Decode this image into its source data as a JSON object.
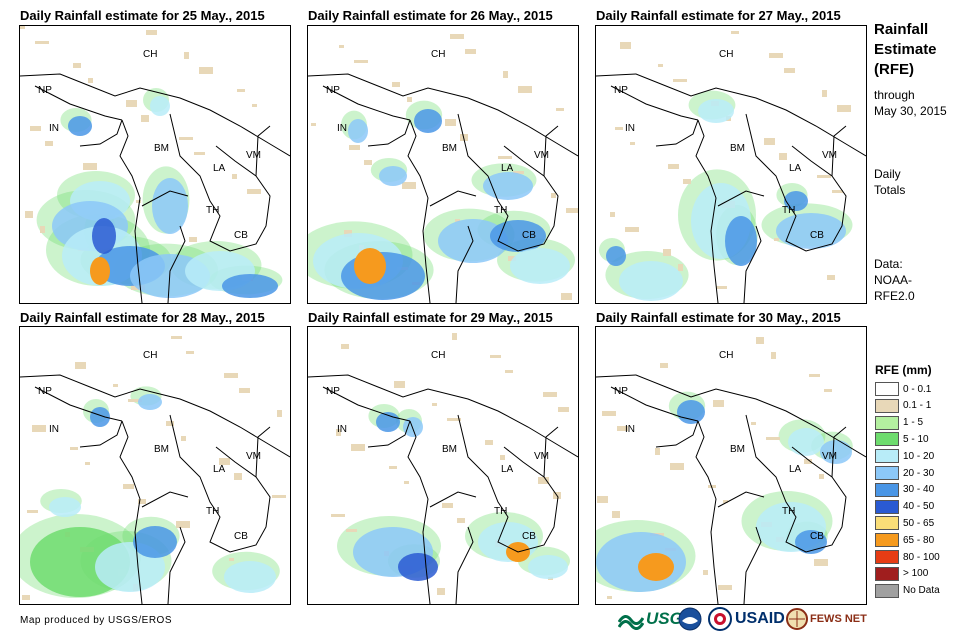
{
  "panels": [
    {
      "title": "Daily Rainfall estimate for 25 May., 2015"
    },
    {
      "title": "Daily Rainfall estimate for 26 May., 2015"
    },
    {
      "title": "Daily Rainfall estimate for 27 May., 2015"
    },
    {
      "title": "Daily Rainfall estimate for 28 May., 2015"
    },
    {
      "title": "Daily Rainfall estimate for 29 May., 2015"
    },
    {
      "title": "Daily Rainfall estimate for 30 May., 2015"
    }
  ],
  "country_labels": [
    "CH",
    "NP",
    "IN",
    "BM",
    "LA",
    "VM",
    "TH",
    "CB"
  ],
  "sidebar": {
    "title_lines": [
      "Rainfall",
      "Estimate",
      "(RFE)"
    ],
    "through_lines": [
      "through",
      "May 30, 2015"
    ],
    "totals_lines": [
      "Daily",
      "Totals"
    ],
    "data_lines": [
      "Data:",
      "NOAA-",
      "RFE2.0"
    ]
  },
  "legend": {
    "title": "RFE (mm)",
    "items": [
      {
        "label": "0 - 0.1",
        "color": "#ffffff"
      },
      {
        "label": "0.1 - 1",
        "color": "#e8d8b8"
      },
      {
        "label": "1 - 5",
        "color": "#b4f0a0"
      },
      {
        "label": "5 - 10",
        "color": "#6edc6e"
      },
      {
        "label": "10 - 20",
        "color": "#b8ecf8"
      },
      {
        "label": "20 - 30",
        "color": "#8cc8f8"
      },
      {
        "label": "30 - 40",
        "color": "#4a96e6"
      },
      {
        "label": "40 - 50",
        "color": "#2a5ad2"
      },
      {
        "label": "50 - 65",
        "color": "#fade78"
      },
      {
        "label": "65 - 80",
        "color": "#f69a1e"
      },
      {
        "label": "80 - 100",
        "color": "#e63c14"
      },
      {
        "label": "> 100",
        "color": "#a01e1e"
      },
      {
        "label": "No Data",
        "color": "#a0a0a0"
      }
    ]
  },
  "footer": {
    "credit": "Map produced by USGS/EROS",
    "logos": [
      {
        "text": "USGS",
        "color": "#00704a"
      },
      {
        "text": "USAID",
        "color": "#002f6c"
      },
      {
        "text": "FEWS NET",
        "color": "#8b2e16"
      }
    ]
  }
}
